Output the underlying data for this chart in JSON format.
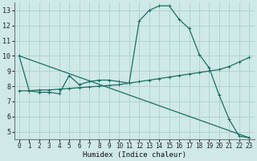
{
  "xlabel": "Humidex (Indice chaleur)",
  "bg_color": "#cfe8e8",
  "grid_color": "#afd0d0",
  "line_color": "#1a7060",
  "xlim": [
    -0.5,
    23.5
  ],
  "ylim": [
    4.5,
    13.5
  ],
  "yticks": [
    5,
    6,
    7,
    8,
    9,
    10,
    11,
    12,
    13
  ],
  "xticks": [
    0,
    1,
    2,
    3,
    4,
    5,
    6,
    7,
    8,
    9,
    10,
    11,
    12,
    13,
    14,
    15,
    16,
    17,
    18,
    19,
    20,
    21,
    22,
    23
  ],
  "line1_x": [
    0,
    1,
    2,
    3,
    4,
    5,
    6,
    7,
    8,
    9,
    10,
    11,
    12,
    13,
    14,
    15,
    16,
    17,
    18,
    19,
    20,
    21,
    22,
    23
  ],
  "line1_y": [
    10.0,
    7.7,
    7.6,
    7.6,
    7.5,
    8.7,
    8.1,
    8.3,
    8.4,
    8.4,
    8.3,
    8.2,
    12.3,
    13.0,
    13.3,
    13.3,
    12.4,
    11.8,
    10.1,
    9.2,
    7.4,
    5.8,
    4.7,
    4.6
  ],
  "line2_x": [
    0,
    1,
    2,
    3,
    4,
    5,
    6,
    7,
    8,
    9,
    10,
    11,
    12,
    13,
    14,
    15,
    16,
    17,
    18,
    19,
    20,
    21,
    22,
    23
  ],
  "line2_y": [
    7.7,
    7.7,
    7.75,
    7.75,
    7.8,
    7.85,
    7.9,
    7.95,
    8.0,
    8.05,
    8.1,
    8.2,
    8.3,
    8.4,
    8.5,
    8.6,
    8.7,
    8.8,
    8.9,
    9.0,
    9.1,
    9.3,
    9.6,
    9.9
  ],
  "line3_x": [
    0,
    23
  ],
  "line3_y": [
    10.0,
    4.6
  ]
}
